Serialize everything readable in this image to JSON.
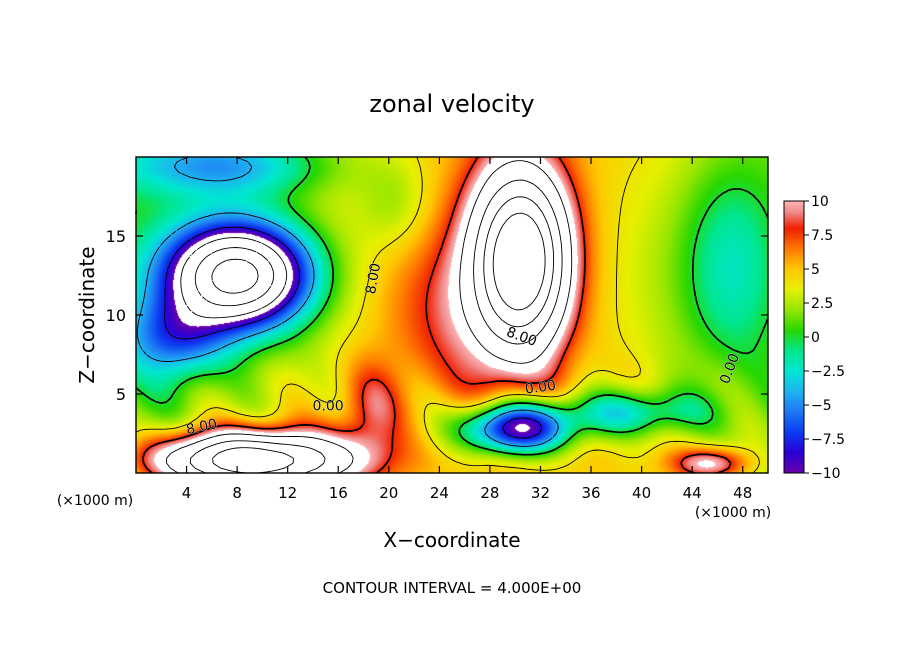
{
  "chart_data": {
    "type": "heatmap",
    "title": "zonal velocity",
    "xlabel": "X−coordinate",
    "ylabel": "Z−coordinate",
    "x_unit_left": "(×1000 m)",
    "x_unit_right": "(×1000 m)",
    "xlim": [
      0,
      50
    ],
    "ylim": [
      0,
      20
    ],
    "x_ticks": [
      4,
      8,
      12,
      16,
      20,
      24,
      28,
      32,
      36,
      40,
      44,
      48
    ],
    "x_tick_labels": [
      "4",
      "8",
      "12",
      "16",
      "20",
      "24",
      "28",
      "32",
      "36",
      "40",
      "44",
      "48"
    ],
    "y_ticks": [
      5,
      10,
      15
    ],
    "y_tick_labels": [
      "5",
      "10",
      "15"
    ],
    "color_range": [
      -10,
      10
    ],
    "colorbar_ticks": [
      10,
      7.5,
      5,
      2.5,
      0,
      -2.5,
      -5,
      -7.5,
      -10
    ],
    "colorbar_labels": [
      "10",
      "7.5",
      "5",
      "2.5",
      "0",
      "−2.5",
      "−5",
      "−7.5",
      "−10"
    ],
    "colorbar_stops": [
      {
        "v": -10,
        "color": "#6a00a8"
      },
      {
        "v": -8.5,
        "color": "#2b00d6"
      },
      {
        "v": -7,
        "color": "#0a3cf0"
      },
      {
        "v": -5.5,
        "color": "#1e78f5"
      },
      {
        "v": -4,
        "color": "#1eb4f0"
      },
      {
        "v": -2.5,
        "color": "#00e6d2"
      },
      {
        "v": -1,
        "color": "#00e68c"
      },
      {
        "v": 0.5,
        "color": "#28d700"
      },
      {
        "v": 2,
        "color": "#96e600"
      },
      {
        "v": 3.5,
        "color": "#e6f000"
      },
      {
        "v": 5,
        "color": "#ffc800"
      },
      {
        "v": 6.5,
        "color": "#ff7800"
      },
      {
        "v": 8,
        "color": "#f01e00"
      },
      {
        "v": 9.2,
        "color": "#f08c8c"
      },
      {
        "v": 10,
        "color": "#ffb4b4"
      }
    ],
    "saturation_color": "#ffffff",
    "features": [
      {
        "x": 8,
        "y": 12.5,
        "amp": -24,
        "sx": 5.5,
        "sy": 3.2
      },
      {
        "x": 30.5,
        "y": 13.5,
        "amp": 24,
        "sx": 3.6,
        "sy": 5.5
      },
      {
        "x": 9,
        "y": 0.8,
        "amp": 20,
        "sx": 8,
        "sy": 1.8
      },
      {
        "x": 30,
        "y": 2.8,
        "amp": -15,
        "sx": 4.2,
        "sy": 1.6
      },
      {
        "x": 39,
        "y": 3.8,
        "amp": -6.5,
        "sx": 6,
        "sy": 1.5
      },
      {
        "x": 7,
        "y": 19.5,
        "amp": -7,
        "sx": 8,
        "sy": 2
      },
      {
        "x": 3,
        "y": 8.5,
        "amp": -7,
        "sx": 4,
        "sy": 2.5
      },
      {
        "x": 25,
        "y": 10,
        "amp": 2.5,
        "sx": 5,
        "sy": 5
      },
      {
        "x": 18.5,
        "y": 4,
        "amp": 4,
        "sx": 2.5,
        "sy": 3
      },
      {
        "x": 47,
        "y": 13,
        "amp": -4,
        "sx": 4,
        "sy": 7
      },
      {
        "x": 45.5,
        "y": 0.6,
        "amp": 7,
        "sx": 3,
        "sy": 1
      },
      {
        "x": 20.5,
        "y": 17,
        "amp": -2.5,
        "sx": 3,
        "sy": 3
      }
    ],
    "contour_interval": 4,
    "contour_labels": [
      {
        "text": "8.00",
        "x": 18.8,
        "y": 12.3,
        "angle": -80
      },
      {
        "text": "8.00",
        "x": 30.5,
        "y": 8.6,
        "angle": 20
      },
      {
        "text": "0.00",
        "x": 15.2,
        "y": 4.2,
        "angle": 0
      },
      {
        "text": "0.00",
        "x": 32,
        "y": 5.4,
        "angle": -8
      },
      {
        "text": "0.00",
        "x": 47,
        "y": 6.6,
        "angle": -70
      },
      {
        "text": "8.00",
        "x": 5.2,
        "y": 2.9,
        "angle": -12
      }
    ],
    "footer": "CONTOUR INTERVAL = 4.000E+00"
  }
}
